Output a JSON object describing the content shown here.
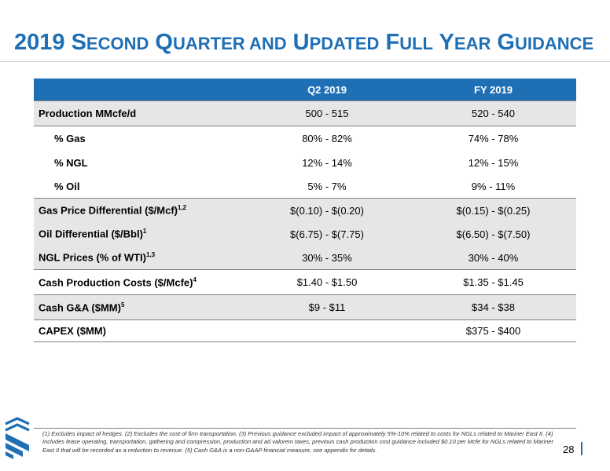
{
  "title": {
    "parts": [
      {
        "text": "2019 S",
        "small": false
      },
      {
        "text": "ECOND",
        "small": true
      },
      {
        "text": " Q",
        "small": false
      },
      {
        "text": "UARTER AND",
        "small": true
      },
      {
        "text": " U",
        "small": false
      },
      {
        "text": "PDATED",
        "small": true
      },
      {
        "text": " F",
        "small": false
      },
      {
        "text": "ULL",
        "small": true
      },
      {
        "text": " Y",
        "small": false
      },
      {
        "text": "EAR",
        "small": true
      },
      {
        "text": " G",
        "small": false
      },
      {
        "text": "UIDANCE",
        "small": true
      }
    ]
  },
  "colors": {
    "brand_blue": "#1f6fb5",
    "row_shade": "#e6e6e6"
  },
  "table": {
    "headers": [
      "",
      "Q2 2019",
      "FY 2019"
    ],
    "rows": [
      {
        "label": "Production MMcfe/d",
        "sup": "",
        "q2": "500 - 515",
        "fy": "520 - 540",
        "shaded": true,
        "indent": false,
        "topline": true,
        "botline": false
      },
      {
        "label": "% Gas",
        "sup": "",
        "q2": "80% - 82%",
        "fy": "74% - 78%",
        "shaded": false,
        "indent": true,
        "topline": true,
        "botline": false
      },
      {
        "label": "% NGL",
        "sup": "",
        "q2": "12% - 14%",
        "fy": "12% - 15%",
        "shaded": false,
        "indent": true,
        "topline": false,
        "botline": false
      },
      {
        "label": "% Oil",
        "sup": "",
        "q2": "5% - 7%",
        "fy": "9% - 11%",
        "shaded": false,
        "indent": true,
        "topline": false,
        "botline": false
      },
      {
        "label": "Gas Price Differential ($/Mcf)",
        "sup": "1,2",
        "q2": "$(0.10) - $(0.20)",
        "fy": "$(0.15) - $(0.25)",
        "shaded": true,
        "indent": false,
        "topline": true,
        "botline": false
      },
      {
        "label": "Oil Differential ($/Bbl)",
        "sup": "1",
        "q2": "$(6.75) - $(7.75)",
        "fy": "$(6.50) - $(7.50)",
        "shaded": true,
        "indent": false,
        "topline": false,
        "botline": false
      },
      {
        "label": "NGL Prices (% of  WTI)",
        "sup": "1,3",
        "q2": "30% - 35%",
        "fy": "30% - 40%",
        "shaded": true,
        "indent": false,
        "topline": false,
        "botline": false
      },
      {
        "label": "Cash Production Costs ($/Mcfe)",
        "sup": "4",
        "q2": "$1.40 - $1.50",
        "fy": "$1.35 - $1.45",
        "shaded": false,
        "indent": false,
        "topline": true,
        "botline": false
      },
      {
        "label": "Cash G&A ($MM)",
        "sup": "5",
        "q2": "$9 - $11",
        "fy": "$34 - $38",
        "shaded": true,
        "indent": false,
        "topline": true,
        "botline": false
      },
      {
        "label": "CAPEX ($MM)",
        "sup": "",
        "q2": "",
        "fy": "$375 - $400",
        "shaded": false,
        "indent": false,
        "topline": true,
        "botline": true
      }
    ]
  },
  "footnote": "(1) Excludes impact of hedges.  (2) Excludes the cost of firm transportation.  (3) Previous guidance excluded impact of approximately 5%-10% related to costs for NGLs related to Mariner East II.  (4) Includes lease operating, transportation, gathering and compression, production and ad valorem taxes; previous cash production cost guidance included $0.10 per Mcfe for NGLs related to Mariner East II that will be recorded as a reduction to revenue.  (5) Cash G&A is a non-GAAP financial measure, see appendix for details.",
  "page_number": "28",
  "logo_icon": "company-logo-icon"
}
